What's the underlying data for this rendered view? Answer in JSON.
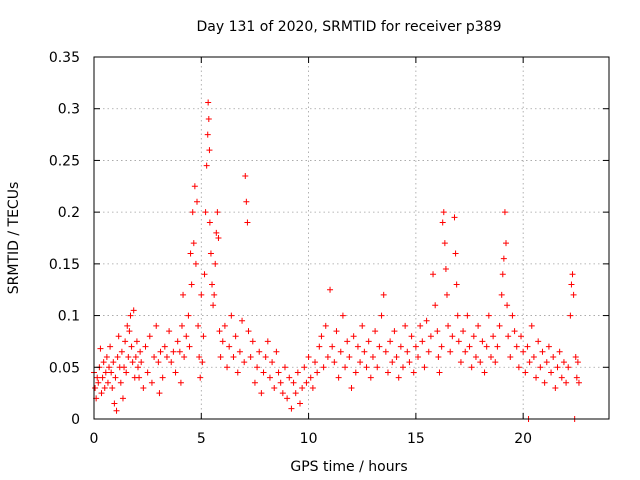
{
  "chart_data": {
    "type": "scatter",
    "title": "Day 131 of 2020, SRMTID for receiver p389",
    "xlabel": "GPS time / hours",
    "ylabel": "SRMTID / TECUs",
    "xlim": [
      0,
      24
    ],
    "ylim": [
      0,
      0.35
    ],
    "grid": true,
    "marker": "+",
    "marker_color": "#ff0000",
    "x_ticks": [
      {
        "value": 0,
        "label": "0"
      },
      {
        "value": 5,
        "label": "5"
      },
      {
        "value": 10,
        "label": "10"
      },
      {
        "value": 15,
        "label": "15"
      },
      {
        "value": 20,
        "label": "20"
      }
    ],
    "y_ticks": [
      {
        "value": 0,
        "label": "0"
      },
      {
        "value": 0.05,
        "label": "0.05"
      },
      {
        "value": 0.1,
        "label": "0.1"
      },
      {
        "value": 0.15,
        "label": "0.15"
      },
      {
        "value": 0.2,
        "label": "0.2"
      },
      {
        "value": 0.25,
        "label": "0.25"
      },
      {
        "value": 0.3,
        "label": "0.3"
      },
      {
        "value": 0.35,
        "label": "0.35"
      }
    ],
    "series": [
      {
        "name": "SRMTID",
        "points": [
          [
            0.0,
            0.045
          ],
          [
            0.05,
            0.03
          ],
          [
            0.1,
            0.02
          ],
          [
            0.15,
            0.04
          ],
          [
            0.2,
            0.035
          ],
          [
            0.25,
            0.05
          ],
          [
            0.3,
            0.068
          ],
          [
            0.35,
            0.025
          ],
          [
            0.4,
            0.04
          ],
          [
            0.45,
            0.055
          ],
          [
            0.5,
            0.03
          ],
          [
            0.55,
            0.045
          ],
          [
            0.6,
            0.06
          ],
          [
            0.65,
            0.035
          ],
          [
            0.7,
            0.05
          ],
          [
            0.75,
            0.07
          ],
          [
            0.8,
            0.045
          ],
          [
            0.85,
            0.03
          ],
          [
            0.9,
            0.055
          ],
          [
            0.95,
            0.015
          ],
          [
            1.0,
            0.04
          ],
          [
            1.05,
            0.008
          ],
          [
            1.1,
            0.06
          ],
          [
            1.15,
            0.08
          ],
          [
            1.2,
            0.05
          ],
          [
            1.25,
            0.035
          ],
          [
            1.3,
            0.065
          ],
          [
            1.35,
            0.02
          ],
          [
            1.4,
            0.05
          ],
          [
            1.45,
            0.075
          ],
          [
            1.5,
            0.045
          ],
          [
            1.55,
            0.09
          ],
          [
            1.6,
            0.06
          ],
          [
            1.65,
            0.085
          ],
          [
            1.7,
            0.1
          ],
          [
            1.75,
            0.07
          ],
          [
            1.8,
            0.055
          ],
          [
            1.85,
            0.105
          ],
          [
            1.9,
            0.04
          ],
          [
            1.95,
            0.06
          ],
          [
            2.0,
            0.075
          ],
          [
            2.05,
            0.05
          ],
          [
            2.1,
            0.04
          ],
          [
            2.15,
            0.065
          ],
          [
            2.2,
            0.055
          ],
          [
            2.3,
            0.03
          ],
          [
            2.4,
            0.07
          ],
          [
            2.5,
            0.045
          ],
          [
            2.6,
            0.08
          ],
          [
            2.7,
            0.035
          ],
          [
            2.8,
            0.06
          ],
          [
            2.9,
            0.09
          ],
          [
            3.0,
            0.055
          ],
          [
            3.05,
            0.025
          ],
          [
            3.1,
            0.065
          ],
          [
            3.2,
            0.04
          ],
          [
            3.3,
            0.07
          ],
          [
            3.4,
            0.06
          ],
          [
            3.5,
            0.085
          ],
          [
            3.6,
            0.055
          ],
          [
            3.7,
            0.065
          ],
          [
            3.8,
            0.045
          ],
          [
            3.9,
            0.075
          ],
          [
            4.0,
            0.065
          ],
          [
            4.05,
            0.035
          ],
          [
            4.1,
            0.09
          ],
          [
            4.15,
            0.12
          ],
          [
            4.2,
            0.06
          ],
          [
            4.3,
            0.08
          ],
          [
            4.4,
            0.1
          ],
          [
            4.45,
            0.07
          ],
          [
            4.5,
            0.16
          ],
          [
            4.55,
            0.13
          ],
          [
            4.6,
            0.2
          ],
          [
            4.65,
            0.17
          ],
          [
            4.7,
            0.225
          ],
          [
            4.75,
            0.15
          ],
          [
            4.8,
            0.21
          ],
          [
            4.85,
            0.09
          ],
          [
            4.9,
            0.06
          ],
          [
            4.95,
            0.04
          ],
          [
            5.0,
            0.12
          ],
          [
            5.05,
            0.055
          ],
          [
            5.1,
            0.08
          ],
          [
            5.15,
            0.14
          ],
          [
            5.2,
            0.2
          ],
          [
            5.25,
            0.245
          ],
          [
            5.3,
            0.275
          ],
          [
            5.32,
            0.306
          ],
          [
            5.35,
            0.29
          ],
          [
            5.38,
            0.26
          ],
          [
            5.4,
            0.19
          ],
          [
            5.45,
            0.16
          ],
          [
            5.5,
            0.13
          ],
          [
            5.55,
            0.11
          ],
          [
            5.6,
            0.12
          ],
          [
            5.65,
            0.15
          ],
          [
            5.7,
            0.18
          ],
          [
            5.75,
            0.2
          ],
          [
            5.8,
            0.175
          ],
          [
            5.85,
            0.085
          ],
          [
            5.9,
            0.06
          ],
          [
            6.0,
            0.075
          ],
          [
            6.1,
            0.09
          ],
          [
            6.2,
            0.05
          ],
          [
            6.3,
            0.07
          ],
          [
            6.4,
            0.1
          ],
          [
            6.5,
            0.06
          ],
          [
            6.6,
            0.08
          ],
          [
            6.7,
            0.045
          ],
          [
            6.8,
            0.065
          ],
          [
            6.9,
            0.095
          ],
          [
            7.0,
            0.055
          ],
          [
            7.05,
            0.235
          ],
          [
            7.1,
            0.21
          ],
          [
            7.15,
            0.19
          ],
          [
            7.2,
            0.085
          ],
          [
            7.3,
            0.06
          ],
          [
            7.4,
            0.075
          ],
          [
            7.5,
            0.035
          ],
          [
            7.6,
            0.05
          ],
          [
            7.7,
            0.065
          ],
          [
            7.8,
            0.025
          ],
          [
            7.9,
            0.045
          ],
          [
            8.0,
            0.06
          ],
          [
            8.1,
            0.075
          ],
          [
            8.2,
            0.04
          ],
          [
            8.3,
            0.055
          ],
          [
            8.4,
            0.03
          ],
          [
            8.5,
            0.065
          ],
          [
            8.6,
            0.045
          ],
          [
            8.7,
            0.035
          ],
          [
            8.8,
            0.025
          ],
          [
            8.9,
            0.05
          ],
          [
            9.0,
            0.02
          ],
          [
            9.1,
            0.04
          ],
          [
            9.2,
            0.01
          ],
          [
            9.3,
            0.035
          ],
          [
            9.4,
            0.025
          ],
          [
            9.5,
            0.045
          ],
          [
            9.6,
            0.015
          ],
          [
            9.7,
            0.03
          ],
          [
            9.8,
            0.05
          ],
          [
            9.9,
            0.035
          ],
          [
            10.0,
            0.06
          ],
          [
            10.1,
            0.04
          ],
          [
            10.2,
            0.03
          ],
          [
            10.3,
            0.055
          ],
          [
            10.4,
            0.045
          ],
          [
            10.5,
            0.07
          ],
          [
            10.6,
            0.08
          ],
          [
            10.7,
            0.05
          ],
          [
            10.8,
            0.09
          ],
          [
            10.9,
            0.06
          ],
          [
            11.0,
            0.125
          ],
          [
            11.1,
            0.07
          ],
          [
            11.2,
            0.055
          ],
          [
            11.3,
            0.085
          ],
          [
            11.4,
            0.04
          ],
          [
            11.5,
            0.065
          ],
          [
            11.6,
            0.1
          ],
          [
            11.7,
            0.05
          ],
          [
            11.8,
            0.075
          ],
          [
            11.9,
            0.06
          ],
          [
            12.0,
            0.03
          ],
          [
            12.1,
            0.08
          ],
          [
            12.2,
            0.045
          ],
          [
            12.3,
            0.07
          ],
          [
            12.4,
            0.055
          ],
          [
            12.5,
            0.09
          ],
          [
            12.6,
            0.065
          ],
          [
            12.7,
            0.05
          ],
          [
            12.8,
            0.075
          ],
          [
            12.9,
            0.04
          ],
          [
            13.0,
            0.06
          ],
          [
            13.1,
            0.085
          ],
          [
            13.2,
            0.05
          ],
          [
            13.3,
            0.07
          ],
          [
            13.4,
            0.1
          ],
          [
            13.5,
            0.12
          ],
          [
            13.6,
            0.065
          ],
          [
            13.7,
            0.045
          ],
          [
            13.8,
            0.075
          ],
          [
            13.9,
            0.055
          ],
          [
            14.0,
            0.085
          ],
          [
            14.1,
            0.06
          ],
          [
            14.2,
            0.04
          ],
          [
            14.3,
            0.07
          ],
          [
            14.4,
            0.05
          ],
          [
            14.5,
            0.09
          ],
          [
            14.6,
            0.065
          ],
          [
            14.7,
            0.055
          ],
          [
            14.8,
            0.08
          ],
          [
            14.9,
            0.045
          ],
          [
            15.0,
            0.07
          ],
          [
            15.1,
            0.06
          ],
          [
            15.2,
            0.09
          ],
          [
            15.3,
            0.075
          ],
          [
            15.4,
            0.05
          ],
          [
            15.5,
            0.095
          ],
          [
            15.6,
            0.065
          ],
          [
            15.7,
            0.08
          ],
          [
            15.8,
            0.14
          ],
          [
            15.9,
            0.11
          ],
          [
            16.0,
            0.085
          ],
          [
            16.05,
            0.06
          ],
          [
            16.1,
            0.045
          ],
          [
            16.2,
            0.07
          ],
          [
            16.25,
            0.19
          ],
          [
            16.3,
            0.2
          ],
          [
            16.35,
            0.17
          ],
          [
            16.4,
            0.145
          ],
          [
            16.45,
            0.12
          ],
          [
            16.5,
            0.09
          ],
          [
            16.6,
            0.065
          ],
          [
            16.7,
            0.08
          ],
          [
            16.8,
            0.195
          ],
          [
            16.85,
            0.16
          ],
          [
            16.9,
            0.13
          ],
          [
            16.95,
            0.1
          ],
          [
            17.0,
            0.075
          ],
          [
            17.1,
            0.055
          ],
          [
            17.2,
            0.085
          ],
          [
            17.3,
            0.065
          ],
          [
            17.4,
            0.1
          ],
          [
            17.5,
            0.07
          ],
          [
            17.6,
            0.05
          ],
          [
            17.7,
            0.08
          ],
          [
            17.8,
            0.06
          ],
          [
            17.9,
            0.09
          ],
          [
            18.0,
            0.055
          ],
          [
            18.1,
            0.075
          ],
          [
            18.2,
            0.045
          ],
          [
            18.3,
            0.07
          ],
          [
            18.4,
            0.1
          ],
          [
            18.5,
            0.06
          ],
          [
            18.6,
            0.08
          ],
          [
            18.7,
            0.055
          ],
          [
            18.8,
            0.07
          ],
          [
            18.9,
            0.09
          ],
          [
            19.0,
            0.12
          ],
          [
            19.05,
            0.14
          ],
          [
            19.1,
            0.155
          ],
          [
            19.15,
            0.2
          ],
          [
            19.2,
            0.17
          ],
          [
            19.25,
            0.11
          ],
          [
            19.3,
            0.08
          ],
          [
            19.4,
            0.06
          ],
          [
            19.5,
            0.1
          ],
          [
            19.6,
            0.085
          ],
          [
            19.7,
            0.07
          ],
          [
            19.8,
            0.05
          ],
          [
            19.9,
            0.08
          ],
          [
            20.0,
            0.065
          ],
          [
            20.1,
            0.045
          ],
          [
            20.2,
            0.07
          ],
          [
            20.25,
            0.0
          ],
          [
            20.3,
            0.055
          ],
          [
            20.4,
            0.09
          ],
          [
            20.5,
            0.06
          ],
          [
            20.6,
            0.04
          ],
          [
            20.7,
            0.075
          ],
          [
            20.8,
            0.05
          ],
          [
            20.9,
            0.065
          ],
          [
            21.0,
            0.035
          ],
          [
            21.1,
            0.055
          ],
          [
            21.2,
            0.07
          ],
          [
            21.3,
            0.045
          ],
          [
            21.4,
            0.06
          ],
          [
            21.5,
            0.03
          ],
          [
            21.6,
            0.05
          ],
          [
            21.7,
            0.065
          ],
          [
            21.8,
            0.04
          ],
          [
            21.9,
            0.055
          ],
          [
            22.0,
            0.035
          ],
          [
            22.1,
            0.05
          ],
          [
            22.2,
            0.1
          ],
          [
            22.25,
            0.13
          ],
          [
            22.3,
            0.14
          ],
          [
            22.35,
            0.12
          ],
          [
            22.4,
            0.0
          ],
          [
            22.45,
            0.06
          ],
          [
            22.5,
            0.04
          ],
          [
            22.55,
            0.055
          ],
          [
            22.6,
            0.035
          ]
        ]
      }
    ]
  }
}
